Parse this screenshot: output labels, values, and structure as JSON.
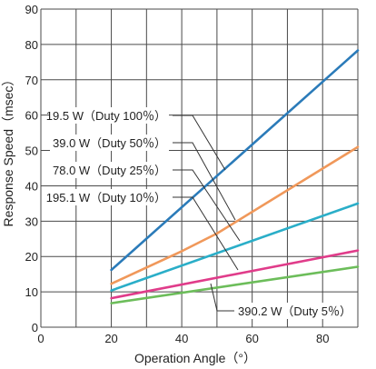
{
  "chart_data": {
    "type": "line",
    "xlabel": "Operation Angle（°）",
    "ylabel": "Response Speed（msec）",
    "xlim": [
      0,
      90
    ],
    "ylim": [
      0,
      90
    ],
    "xticks": [
      0,
      20,
      40,
      60,
      80
    ],
    "yticks": [
      0,
      10,
      20,
      30,
      40,
      50,
      60,
      70,
      80,
      90
    ],
    "grid": true,
    "series": [
      {
        "name": "19.5 W（Duty 100％）",
        "color": "#2b7bb9",
        "x": [
          20,
          90
        ],
        "y": [
          16.2,
          78.3
        ]
      },
      {
        "name": "39.0 W（Duty 50％）",
        "color": "#f0985a",
        "x": [
          20,
          40,
          50,
          90
        ],
        "y": [
          12.3,
          21.5,
          26.5,
          51.0
        ]
      },
      {
        "name": "78.0 W（Duty 25％）",
        "color": "#2aaec8",
        "x": [
          20,
          90
        ],
        "y": [
          10.4,
          35.0
        ]
      },
      {
        "name": "195.1 W（Duty 10％）",
        "color": "#e03c8a",
        "x": [
          20,
          90
        ],
        "y": [
          8.2,
          21.7
        ]
      },
      {
        "name": "390.2 W（Duty 5％）",
        "color": "#6cbd5a",
        "x": [
          20,
          90
        ],
        "y": [
          6.8,
          17.1
        ]
      }
    ]
  }
}
